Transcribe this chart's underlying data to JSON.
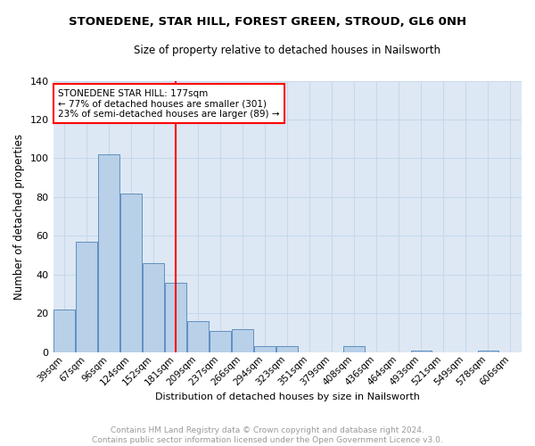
{
  "title": "STONEDENE, STAR HILL, FOREST GREEN, STROUD, GL6 0NH",
  "subtitle": "Size of property relative to detached houses in Nailsworth",
  "xlabel": "Distribution of detached houses by size in Nailsworth",
  "ylabel": "Number of detached properties",
  "bar_labels": [
    "39sqm",
    "67sqm",
    "96sqm",
    "124sqm",
    "152sqm",
    "181sqm",
    "209sqm",
    "237sqm",
    "266sqm",
    "294sqm",
    "323sqm",
    "351sqm",
    "379sqm",
    "408sqm",
    "436sqm",
    "464sqm",
    "493sqm",
    "521sqm",
    "549sqm",
    "578sqm",
    "606sqm"
  ],
  "bar_values": [
    22,
    57,
    102,
    82,
    46,
    36,
    16,
    11,
    12,
    3,
    3,
    0,
    0,
    3,
    0,
    0,
    1,
    0,
    0,
    1,
    0
  ],
  "bar_color": "#b8d0e8",
  "bar_edge_color": "#6090c0",
  "grid_color": "#c8d8ec",
  "background_color": "#dde8f4",
  "red_line_x": 5,
  "annotation_text_line1": "STONEDENE STAR HILL: 177sqm",
  "annotation_text_line2": "← 77% of detached houses are smaller (301)",
  "annotation_text_line3": "23% of semi-detached houses are larger (89) →",
  "footer_line1": "Contains HM Land Registry data © Crown copyright and database right 2024.",
  "footer_line2": "Contains public sector information licensed under the Open Government Licence v3.0.",
  "ylim": [
    0,
    140
  ],
  "yticks": [
    0,
    20,
    40,
    60,
    80,
    100,
    120,
    140
  ],
  "title_fontsize": 9.5,
  "subtitle_fontsize": 8.5,
  "tick_fontsize": 7.5,
  "ylabel_fontsize": 8.5,
  "xlabel_fontsize": 8.0,
  "annotation_fontsize": 7.5,
  "footer_fontsize": 6.5
}
